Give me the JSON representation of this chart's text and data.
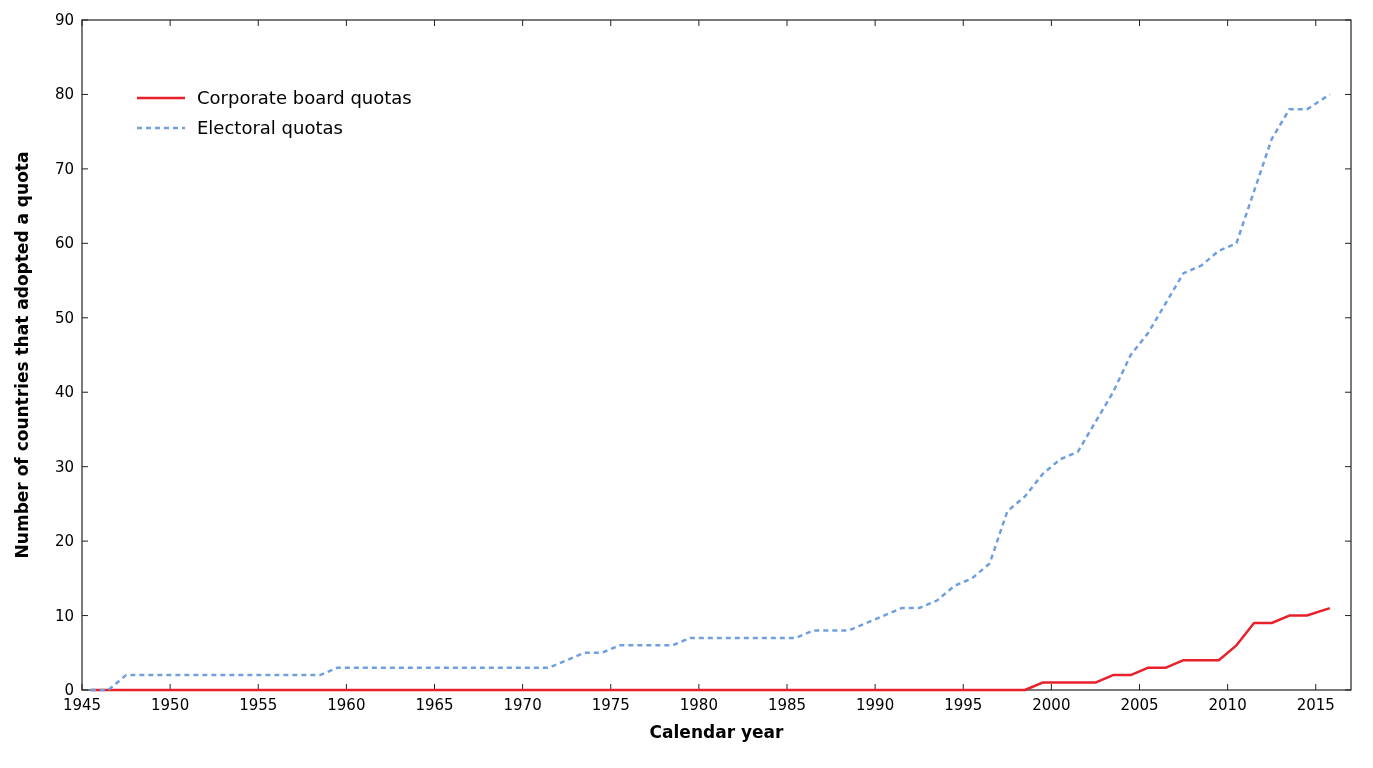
{
  "chart_data": {
    "type": "line",
    "xlabel": "Calendar year",
    "ylabel": "Number of countries that adopted a quota",
    "xlim": [
      1945,
      2017
    ],
    "xticks": [
      1945,
      1950,
      1955,
      1960,
      1965,
      1970,
      1975,
      1980,
      1985,
      1990,
      1995,
      2000,
      2005,
      2010,
      2015
    ],
    "ylim": [
      0,
      90
    ],
    "yticks": [
      0,
      10,
      20,
      30,
      40,
      50,
      60,
      70,
      80,
      90
    ],
    "grid": false,
    "legend": "top left",
    "series": [
      {
        "name": "Corporate board quotas",
        "color": "#e8202a",
        "line_style": "solid",
        "x": [
          1945.5,
          1998.5,
          1999.5,
          2002.5,
          2003.5,
          2004.5,
          2005.5,
          2006.5,
          2007.5,
          2009.5,
          2010.5,
          2011.5,
          2012.5,
          2013.5,
          2014.5,
          2015.8
        ],
        "values": [
          0,
          0,
          1,
          1,
          2,
          2,
          3,
          3,
          4,
          4,
          6,
          9,
          9,
          10,
          10,
          11
        ]
      },
      {
        "name": "Electoral quotas",
        "color": "#6f9fdf",
        "line_style": "dashed",
        "x": [
          1945.5,
          1946.5,
          1947.5,
          1958.5,
          1959.5,
          1971.5,
          1973.5,
          1974.5,
          1975.5,
          1978.5,
          1979.5,
          1985.5,
          1986.5,
          1988.5,
          1990.5,
          1991.5,
          1992.5,
          1993.5,
          1994.5,
          1995.5,
          1996.5,
          1997.5,
          1998.5,
          1999.5,
          2000.5,
          2001.5,
          2002.5,
          2003.5,
          2004.5,
          2005.5,
          2006.5,
          2007.5,
          2008.5,
          2009.5,
          2010.5,
          2011.5,
          2012.5,
          2013.5,
          2014.5,
          2015.8
        ],
        "values": [
          0,
          0,
          2,
          2,
          3,
          3,
          5,
          5,
          6,
          6,
          7,
          7,
          8,
          8,
          10,
          11,
          11,
          12,
          14,
          15,
          17,
          24,
          26,
          29,
          31,
          32,
          36,
          40,
          45,
          48,
          52,
          56,
          57,
          59,
          60,
          67,
          74,
          78,
          78,
          80
        ]
      }
    ]
  }
}
